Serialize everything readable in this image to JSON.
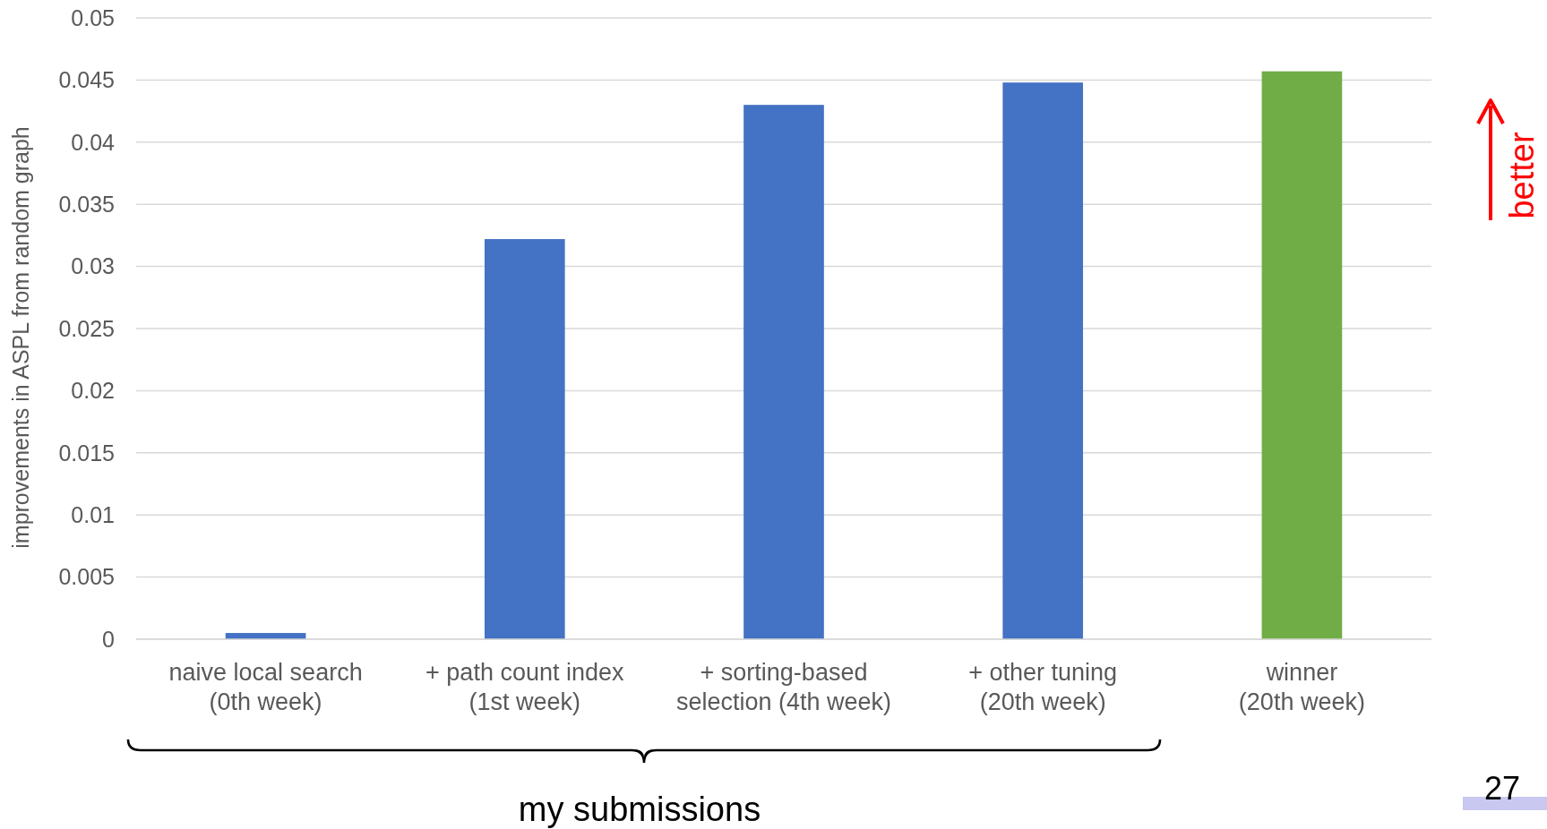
{
  "chart_data": {
    "type": "bar",
    "ylabel": "improvements in ASPL from random graph",
    "categories": [
      "naive local search\n(0th week)",
      "+ path count index\n(1st week)",
      "+ sorting-based\nselection (4th week)",
      "+ other tuning\n(20th week)",
      "winner\n(20th week)"
    ],
    "values": [
      0.0005,
      0.0322,
      0.043,
      0.0448,
      0.0457
    ],
    "colors": [
      "#4472c4",
      "#4472c4",
      "#4472c4",
      "#4472c4",
      "#70ad47"
    ],
    "ylim": [
      0,
      0.05
    ],
    "yticks": [
      0,
      0.005,
      0.01,
      0.015,
      0.02,
      0.025,
      0.03,
      0.035,
      0.04,
      0.045,
      0.05
    ],
    "grid": "y",
    "annotations": [
      "my submissions",
      "better",
      "27"
    ]
  }
}
